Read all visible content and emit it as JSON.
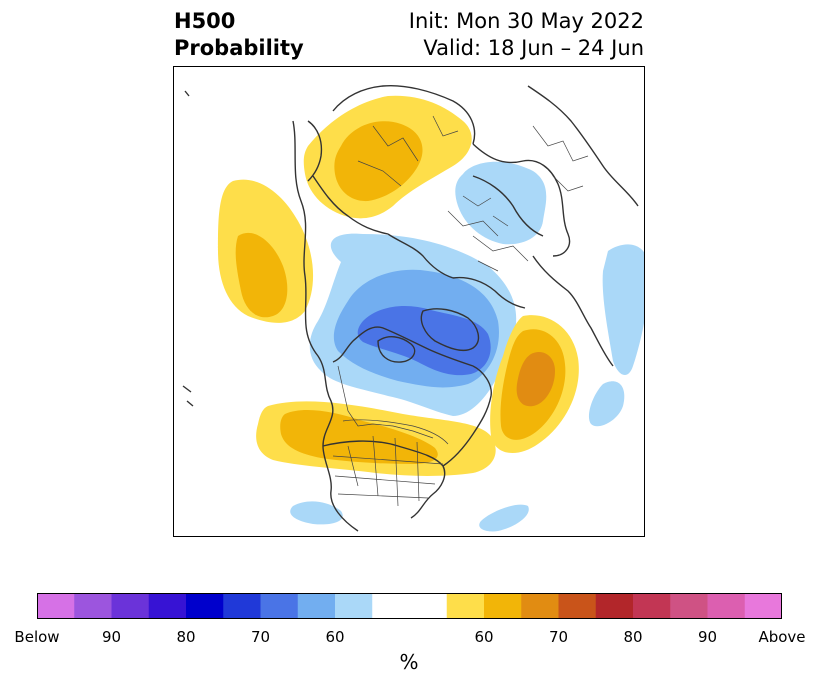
{
  "header": {
    "variable": "H500",
    "product": "Probability",
    "init": "Init: Mon 30 May 2022",
    "valid": "Valid: 18 Jun – 24 Jun"
  },
  "colorbar": {
    "units": "%",
    "tick_labels": [
      "Below",
      "90",
      "80",
      "70",
      "60",
      "",
      "60",
      "70",
      "80",
      "90",
      "Above"
    ],
    "colors": [
      "#d671e6",
      "#9c55de",
      "#6b33d9",
      "#3713d4",
      "#0000cc",
      "#2039d8",
      "#4a74e6",
      "#72aef0",
      "#aad8f8",
      "#ffffff",
      "#ffffff",
      "#fede4a",
      "#f2b508",
      "#e18c12",
      "#c9541a",
      "#b2262a",
      "#c23654",
      "#cf5284",
      "#dc5fb0",
      "#e878dc"
    ]
  },
  "map": {
    "projection": "north-polar-stereographic",
    "coastline_color": "#333333",
    "border_color": "#444444"
  }
}
